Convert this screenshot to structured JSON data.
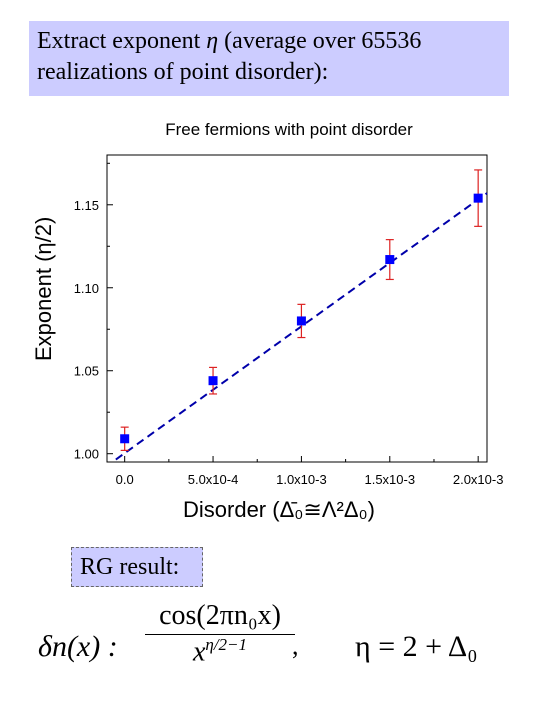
{
  "header": {
    "line1_prefix": "Extract exponent",
    "eta_symbol": "η",
    "line1_suffix": "(average over 65536",
    "line2": "realizations of point disorder):"
  },
  "chart_data": {
    "type": "scatter",
    "title": "Free fermions with point disorder",
    "ylabel": "Exponent (η/2)",
    "xlabel": "Disorder (Δ̄₀≅Λ²Δ₀)",
    "xlim": [
      -0.0001,
      0.00205
    ],
    "ylim": [
      0.995,
      1.18
    ],
    "x_tick_labels": [
      "0.0",
      "5.0x10-4",
      "1.0x10-3",
      "1.5x10-3",
      "2.0x10-3"
    ],
    "x_ticks": [
      0,
      0.0005,
      0.001,
      0.0015,
      0.002
    ],
    "y_tick_labels": [
      "1.00",
      "1.05",
      "1.10",
      "1.15"
    ],
    "y_ticks": [
      1.0,
      1.05,
      1.1,
      1.15
    ],
    "grid": false,
    "series": [
      {
        "marker_color": "#0000ff",
        "errorbar_color": "#dd2222",
        "x": [
          0.0,
          0.0005,
          0.001,
          0.0015,
          0.002
        ],
        "y": [
          1.009,
          1.044,
          1.08,
          1.117,
          1.154
        ],
        "yerr": [
          0.007,
          0.008,
          0.01,
          0.012,
          0.017
        ]
      }
    ],
    "fit_line": {
      "x": [
        -5e-05,
        0.00205
      ],
      "y": [
        0.9965,
        1.157
      ],
      "color": "#0000aa",
      "style": "dashed"
    }
  },
  "rg": {
    "label": "RG result:",
    "formula_lhs": "δn(x) :",
    "formula_num": "cos(2πn₀x)",
    "formula_den": "x",
    "formula_den_exp": "η/2−1",
    "eta_eq": "η = 2 + Δ₀"
  }
}
